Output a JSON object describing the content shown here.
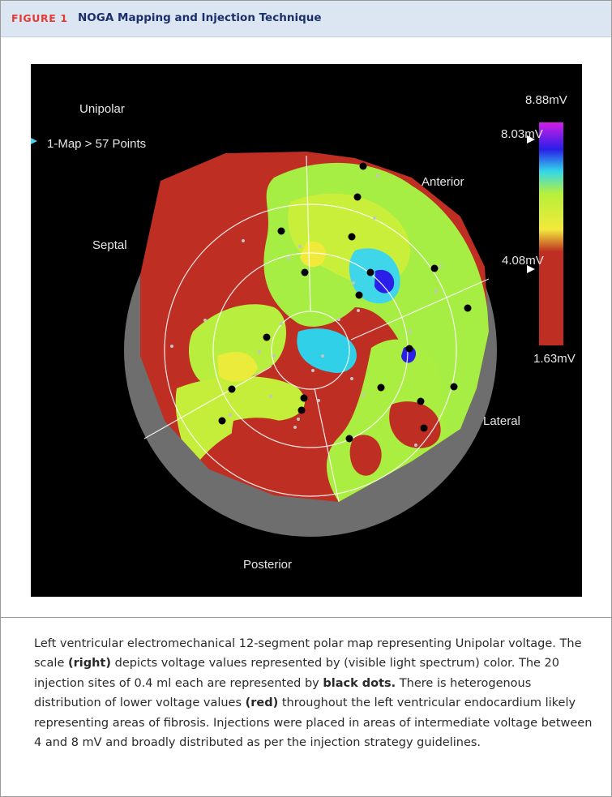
{
  "figure": {
    "label": "FIGURE 1",
    "title": "NOGA Mapping and Injection Technique"
  },
  "map": {
    "mode_label": "Unipolar",
    "points_label": "1-Map > 57 Points",
    "regions": {
      "anterior": "Anterior",
      "septal": "Septal",
      "lateral": "Lateral",
      "posterior": "Posterior"
    },
    "scale": {
      "max": "8.88mV",
      "upper_threshold": "8.03mV",
      "lower_threshold": "4.08mV",
      "min": "1.63mV",
      "colors": [
        "#d21ee6",
        "#2a1ee8",
        "#33d8ea",
        "#b6f03a",
        "#f2ea3b",
        "#bf2e22"
      ]
    },
    "injection_site_count": 20,
    "injection_volume": "0.4 ml"
  },
  "caption": {
    "seg1": "Left ventricular electromechanical 12-segment polar map representing Unipolar voltage. The scale ",
    "bold1": "(right)",
    "seg2": " depicts voltage values represented by (visible light spectrum) color. The 20 injection sites of 0.4 ml each are represented by ",
    "bold2": "black dots.",
    "seg3": " There is heterogenous distribution of lower voltage values ",
    "bold3": "(red)",
    "seg4": " throughout the left ventricular endocardium likely representing areas of fibrosis. Injections were placed in areas of intermediate voltage between 4 and 8 mV and broadly distributed as per the injection strategy guidelines."
  }
}
